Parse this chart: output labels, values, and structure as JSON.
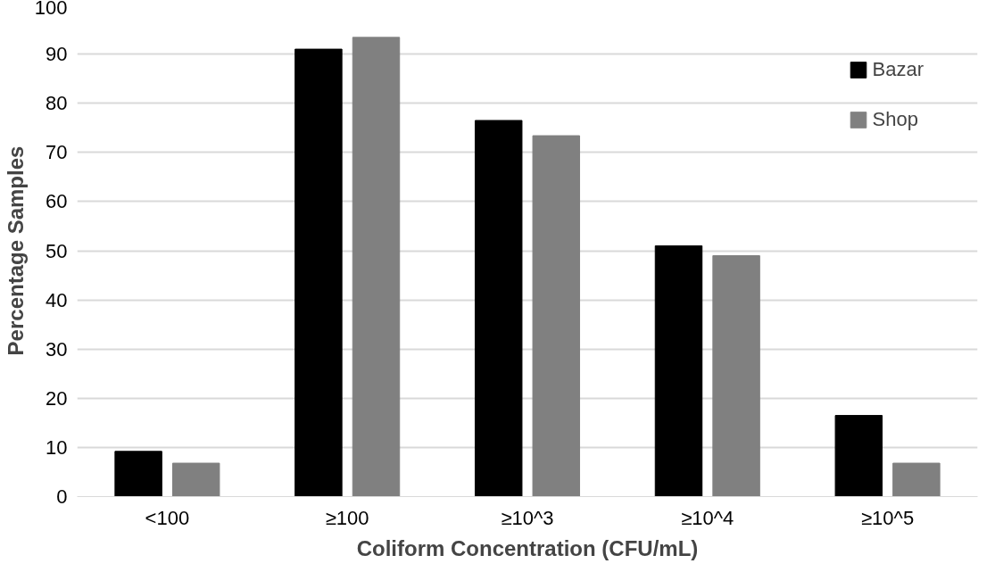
{
  "chart_data": {
    "type": "bar",
    "xlabel": "Coliform Concentration (CFU/mL)",
    "ylabel": "Percentage Samples",
    "categories": [
      "<100",
      "≥100",
      "≥10^3",
      "≥10^4",
      "≥10^5"
    ],
    "series": [
      {
        "name": "Bazar",
        "color": "#000000",
        "values": [
          9.2,
          91.0,
          76.5,
          51.0,
          16.5
        ]
      },
      {
        "name": "Shop",
        "color": "#808080",
        "values": [
          6.8,
          93.4,
          73.4,
          49.0,
          6.8
        ]
      }
    ],
    "ylim": [
      0,
      100
    ],
    "yticks": [
      0,
      10,
      20,
      30,
      40,
      50,
      60,
      70,
      80,
      90,
      100
    ],
    "grid": "y",
    "legend": "top right"
  }
}
